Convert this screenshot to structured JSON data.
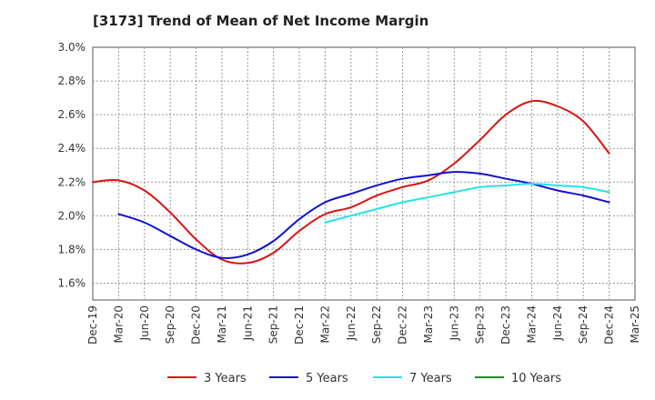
{
  "chart_data": {
    "type": "line",
    "title": "[3173]  Trend of Mean of Net Income Margin",
    "xlabel": "",
    "ylabel": "",
    "x": [
      "Dec-19",
      "Mar-20",
      "Jun-20",
      "Sep-20",
      "Dec-20",
      "Mar-21",
      "Jun-21",
      "Sep-21",
      "Dec-21",
      "Mar-22",
      "Jun-22",
      "Sep-22",
      "Dec-22",
      "Mar-23",
      "Jun-23",
      "Sep-23",
      "Dec-23",
      "Mar-24",
      "Jun-24",
      "Sep-24",
      "Dec-24",
      "Mar-25"
    ],
    "ylim": [
      1.5,
      3.0
    ],
    "yticks": [
      1.6,
      1.8,
      2.0,
      2.2,
      2.4,
      2.6,
      2.8,
      3.0
    ],
    "ytick_labels": [
      "1.6%",
      "1.8%",
      "2.0%",
      "2.2%",
      "2.4%",
      "2.6%",
      "2.8%",
      "3.0%"
    ],
    "grid": true,
    "legend_position": "bottom",
    "series": [
      {
        "name": "3 Years",
        "color": "#dd1111",
        "values": [
          2.2,
          2.21,
          2.15,
          2.02,
          1.86,
          1.74,
          1.72,
          1.78,
          1.91,
          2.01,
          2.05,
          2.12,
          2.17,
          2.21,
          2.31,
          2.45,
          2.6,
          2.68,
          2.65,
          2.56,
          2.37,
          null
        ]
      },
      {
        "name": "5 Years",
        "color": "#1111cc",
        "values": [
          null,
          2.01,
          1.96,
          1.88,
          1.8,
          1.75,
          1.77,
          1.85,
          1.98,
          2.08,
          2.13,
          2.18,
          2.22,
          2.24,
          2.26,
          2.25,
          2.22,
          2.19,
          2.15,
          2.12,
          2.08,
          null
        ]
      },
      {
        "name": "7 Years",
        "color": "#22e5e5",
        "values": [
          null,
          null,
          null,
          null,
          null,
          null,
          null,
          null,
          null,
          1.96,
          2.0,
          2.04,
          2.08,
          2.11,
          2.14,
          2.17,
          2.18,
          2.19,
          2.18,
          2.17,
          2.14,
          null
        ]
      },
      {
        "name": "10 Years",
        "color": "#228822",
        "values": [
          null,
          null,
          null,
          null,
          null,
          null,
          null,
          null,
          null,
          null,
          null,
          null,
          null,
          null,
          null,
          null,
          null,
          null,
          null,
          null,
          null,
          null
        ]
      }
    ]
  }
}
